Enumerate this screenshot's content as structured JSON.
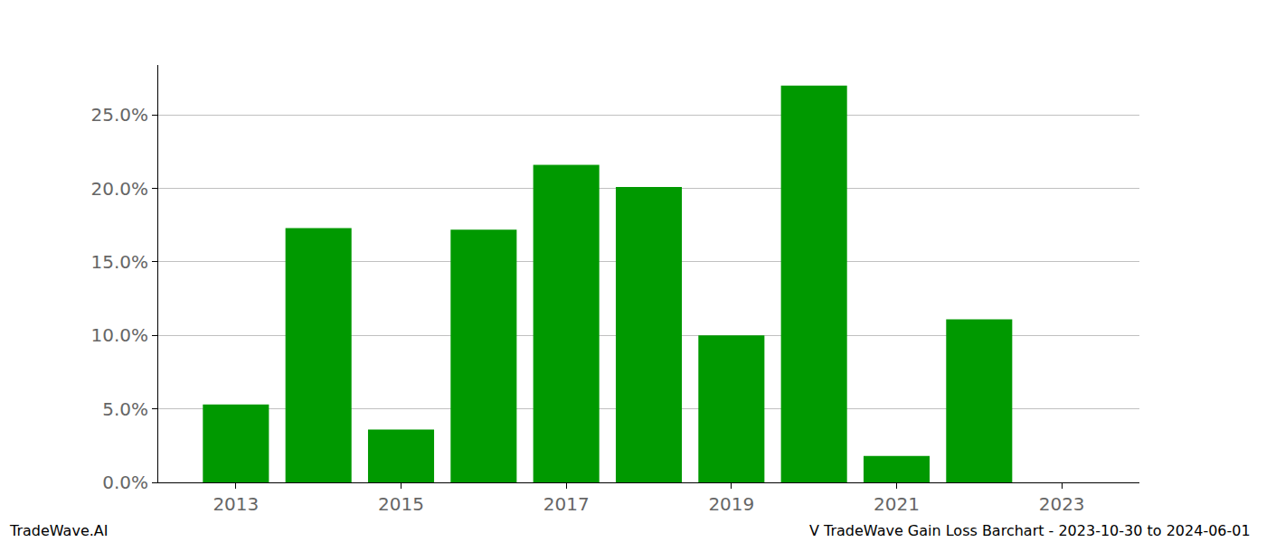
{
  "chart_data": {
    "type": "bar",
    "x": [
      2013,
      2014,
      2015,
      2016,
      2017,
      2018,
      2019,
      2020,
      2021,
      2022,
      2023
    ],
    "values": [
      5.3,
      17.3,
      3.6,
      17.2,
      21.6,
      20.1,
      10.0,
      27.0,
      1.8,
      11.1,
      0
    ],
    "color": "#009900",
    "xlim": [
      2012.06,
      2023.94
    ],
    "xticks": [
      2013,
      2015,
      2017,
      2019,
      2021,
      2023
    ],
    "ylim": [
      0,
      28.4
    ],
    "yticks": [
      {
        "value": 0,
        "label": "0.0%"
      },
      {
        "value": 5,
        "label": "5.0%"
      },
      {
        "value": 10,
        "label": "10.0%"
      },
      {
        "value": 15,
        "label": "15.0%"
      },
      {
        "value": 20,
        "label": "20.0%"
      },
      {
        "value": 25,
        "label": "25.0%"
      }
    ],
    "grid": true,
    "annotations": [
      "TradeWave.AI",
      "V TradeWave Gain Loss Barchart - 2023-10-30 to 2024-06-01"
    ]
  }
}
